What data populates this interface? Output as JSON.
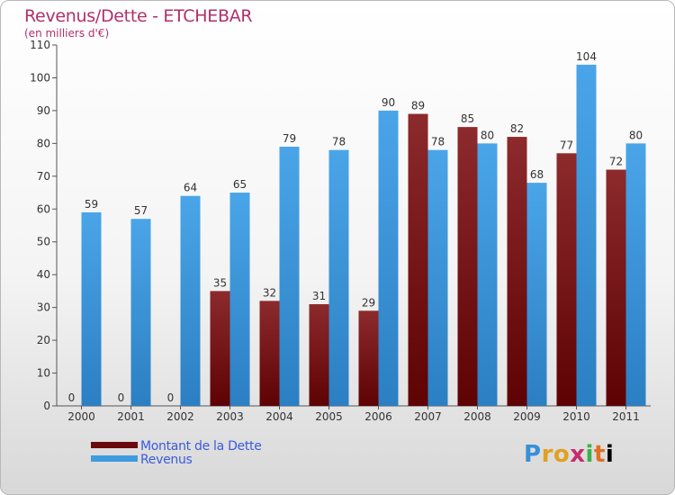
{
  "header": {
    "title": "Revenus/Dette - ETCHEBAR",
    "subtitle": "(en milliers d'€)"
  },
  "logo": {
    "text": "Proxiti"
  },
  "colors": {
    "dette": "#7a1416",
    "revenus": "#3f9be0",
    "title": "#b0306a",
    "legend_text": "#3b5bdb"
  },
  "chart_data": {
    "type": "bar",
    "categories": [
      "2000",
      "2001",
      "2002",
      "2003",
      "2004",
      "2005",
      "2006",
      "2007",
      "2008",
      "2009",
      "2010",
      "2011"
    ],
    "series": [
      {
        "name": "Montant de la Dette",
        "values": [
          0,
          0,
          0,
          35,
          32,
          31,
          29,
          89,
          85,
          82,
          77,
          72
        ]
      },
      {
        "name": "Revenus",
        "values": [
          59,
          57,
          64,
          65,
          79,
          78,
          90,
          78,
          80,
          68,
          104,
          80
        ]
      }
    ],
    "yticks": [
      0,
      10,
      20,
      30,
      40,
      50,
      60,
      70,
      80,
      90,
      100,
      110
    ],
    "ylim": [
      0,
      110
    ],
    "grid": false,
    "data_labels": true,
    "legend_position": "bottom-left"
  }
}
